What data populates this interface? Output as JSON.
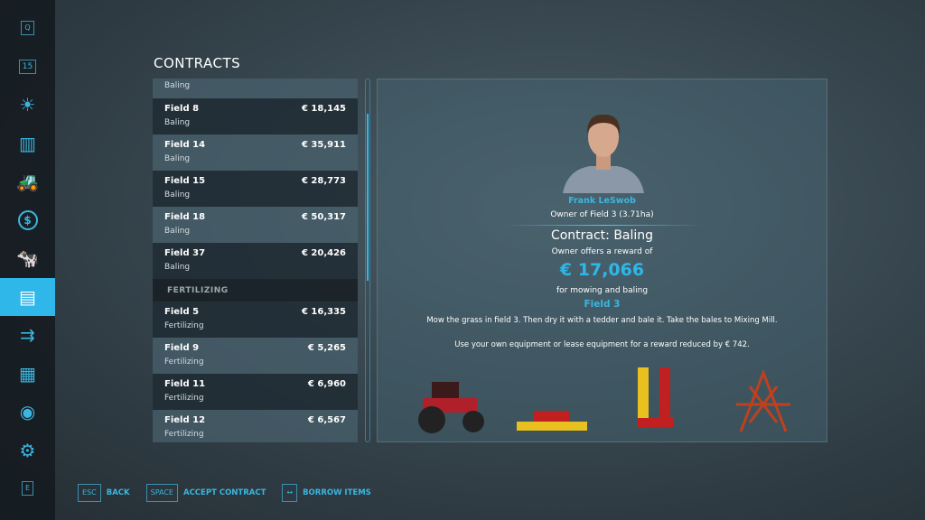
{
  "sidebar": {
    "items": [
      {
        "icon": "q-key-icon",
        "label": "Q"
      },
      {
        "icon": "calendar-icon",
        "label": "15"
      },
      {
        "icon": "weather-icon",
        "label": "☀"
      },
      {
        "icon": "statistics-icon",
        "label": "▥"
      },
      {
        "icon": "tractor-icon",
        "label": "🚜"
      },
      {
        "icon": "finances-icon",
        "label": "$"
      },
      {
        "icon": "animals-icon",
        "label": "🐄"
      },
      {
        "icon": "contracts-icon",
        "label": "▤",
        "active": true
      },
      {
        "icon": "production-icon",
        "label": "⇉"
      },
      {
        "icon": "production-chains-icon",
        "label": "▦"
      },
      {
        "icon": "help-icon",
        "label": "◉"
      },
      {
        "icon": "settings-icon",
        "label": "⚙"
      },
      {
        "icon": "e-key-icon",
        "label": "E"
      }
    ]
  },
  "title": "CONTRACTS",
  "list": {
    "partial_row": {
      "type": "Baling"
    },
    "baling": [
      {
        "field": "Field 8",
        "price": "€ 18,145",
        "type": "Baling"
      },
      {
        "field": "Field 14",
        "price": "€ 35,911",
        "type": "Baling"
      },
      {
        "field": "Field 15",
        "price": "€ 28,773",
        "type": "Baling"
      },
      {
        "field": "Field 18",
        "price": "€ 50,317",
        "type": "Baling"
      },
      {
        "field": "Field 37",
        "price": "€ 20,426",
        "type": "Baling"
      }
    ],
    "fertilizing_header": "FERTILIZING",
    "fertilizing": [
      {
        "field": "Field 5",
        "price": "€ 16,335",
        "type": "Fertilizing"
      },
      {
        "field": "Field 9",
        "price": "€ 5,265",
        "type": "Fertilizing"
      },
      {
        "field": "Field 11",
        "price": "€ 6,960",
        "type": "Fertilizing"
      },
      {
        "field": "Field 12",
        "price": "€ 6,567",
        "type": "Fertilizing"
      }
    ]
  },
  "detail": {
    "owner_name": "Frank LeSwob",
    "owner_of": "Owner of Field 3 (3.71ha)",
    "contract_title": "Contract: Baling",
    "offer_text": "Owner offers a reward of",
    "reward": "€ 17,066",
    "for_text": "for mowing and baling",
    "field": "Field 3",
    "description": "Mow the grass in field 3. Then dry it with a tedder and bale it. Take the bales to Mixing Mill.",
    "lease_text": "Use your own equipment or lease equipment for a reward reduced by € 742.",
    "equipment": [
      "tractor",
      "mower",
      "mower-conditioner",
      "tedder"
    ]
  },
  "footer": [
    {
      "key": "ESC",
      "label": "BACK"
    },
    {
      "key": "SPACE",
      "label": "ACCEPT CONTRACT"
    },
    {
      "key": "↔",
      "label": "BORROW ITEMS"
    }
  ],
  "colors": {
    "accent": "#2fb7e9"
  }
}
